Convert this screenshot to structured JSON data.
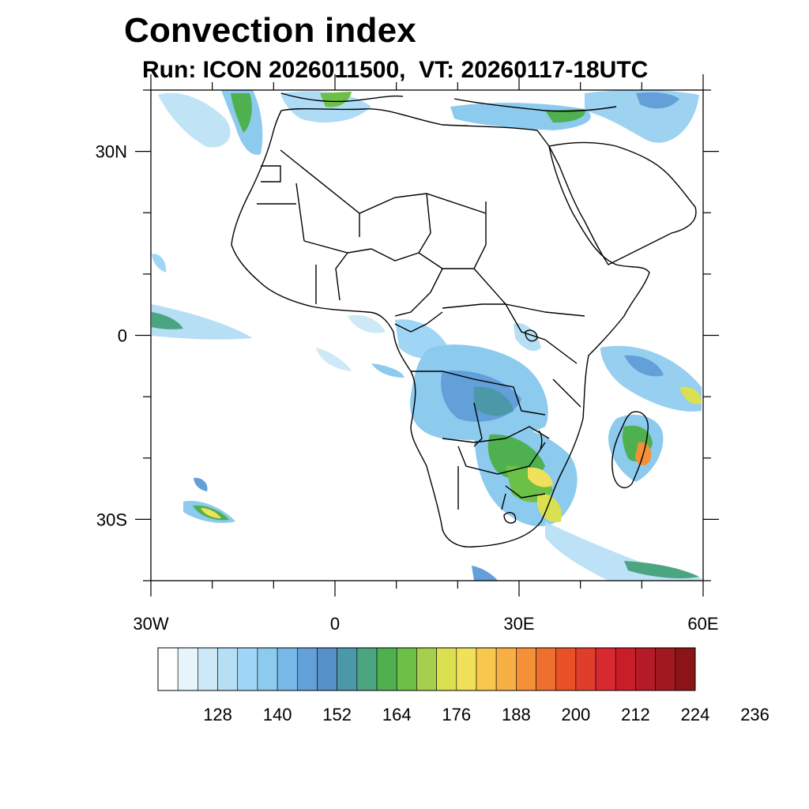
{
  "header": {
    "title": "Convection index",
    "subtitle": "Run: ICON 2026011500,  VT: 20260117-18UTC"
  },
  "map": {
    "extent": {
      "lon_min": -30,
      "lon_max": 60,
      "lat_min": -40,
      "lat_max": 40
    },
    "lat_labels": [
      {
        "lat": 30,
        "label": "30N"
      },
      {
        "lat": 0,
        "label": "0"
      },
      {
        "lat": -30,
        "label": "30S"
      }
    ],
    "lon_labels": [
      {
        "lon": -30,
        "label": "30W"
      },
      {
        "lon": 0,
        "label": "0"
      },
      {
        "lon": 30,
        "label": "30E"
      },
      {
        "lon": 60,
        "label": "60E"
      }
    ]
  },
  "colorbar": {
    "colors": [
      "#ffffff",
      "#e8f4fb",
      "#cde8f7",
      "#b6def5",
      "#a0d6f5",
      "#8ccaee",
      "#78b8e6",
      "#639fd8",
      "#5690c8",
      "#4a98a8",
      "#4aa580",
      "#4fb04f",
      "#6cbf47",
      "#a6cf4e",
      "#dbe050",
      "#f0e05a",
      "#f8c84e",
      "#f8b045",
      "#f39038",
      "#ee7030",
      "#e85028",
      "#e03e2c",
      "#d82830",
      "#c81e2a",
      "#b51a28",
      "#a01820",
      "#8a1418"
    ],
    "tick_labels": [
      "128",
      "140",
      "152",
      "164",
      "176",
      "188",
      "200",
      "212",
      "224",
      "236"
    ]
  }
}
